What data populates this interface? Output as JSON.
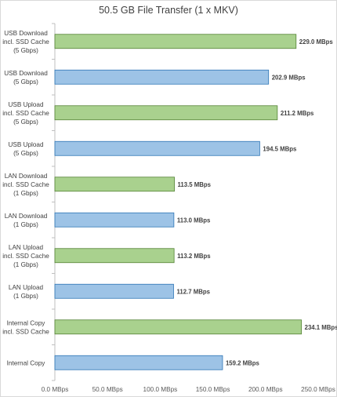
{
  "chart_data": {
    "type": "bar",
    "orientation": "horizontal",
    "title": "50.5 GB File Transfer (1 x MKV)",
    "categories": [
      [
        "USB Download",
        "incl. SSD Cache",
        "(5 Gbps)"
      ],
      [
        "USB Download",
        "(5 Gbps)"
      ],
      [
        "USB Upload",
        "incl. SSD Cache",
        "(5 Gbps)"
      ],
      [
        "USB Upload",
        "(5 Gbps)"
      ],
      [
        "LAN Download",
        "incl. SSD Cache",
        "(1 Gbps)"
      ],
      [
        "LAN Download",
        "(1 Gbps)"
      ],
      [
        "LAN Upload",
        "incl. SSD Cache",
        "(1 Gbps)"
      ],
      [
        "LAN Upload",
        "(1 Gbps)"
      ],
      [
        "Internal Copy",
        "incl. SSD Cache"
      ],
      [
        "Internal Copy"
      ]
    ],
    "values": [
      229.0,
      202.9,
      211.2,
      194.5,
      113.5,
      113.0,
      113.2,
      112.7,
      234.1,
      159.2
    ],
    "value_labels": [
      "229.0 MBps",
      "202.9 MBps",
      "211.2 MBps",
      "194.5 MBps",
      "113.5 MBps",
      "113.0 MBps",
      "113.2 MBps",
      "112.7 MBps",
      "234.1 MBps",
      "159.2 MBps"
    ],
    "bar_colors": [
      "#a9d18e",
      "#9dc3e6",
      "#a9d18e",
      "#9dc3e6",
      "#a9d18e",
      "#9dc3e6",
      "#a9d18e",
      "#9dc3e6",
      "#a9d18e",
      "#9dc3e6"
    ],
    "bar_border_colors": [
      "#548235",
      "#2e75b6",
      "#548235",
      "#2e75b6",
      "#548235",
      "#2e75b6",
      "#548235",
      "#2e75b6",
      "#548235",
      "#2e75b6"
    ],
    "xlim": [
      0,
      250
    ],
    "xticks": [
      0,
      50,
      100,
      150,
      200,
      250
    ],
    "xtick_labels": [
      "0.0 MBps",
      "50.0 MBps",
      "100.0 MBps",
      "150.0 MBps",
      "200.0 MBps",
      "250.0 MBps"
    ],
    "grid": false,
    "legend": "none"
  }
}
